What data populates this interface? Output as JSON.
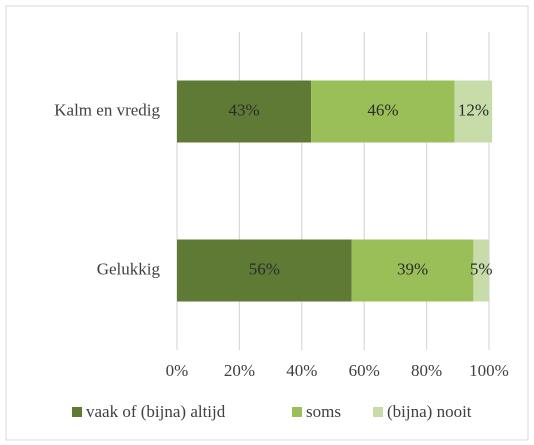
{
  "chart_data": {
    "type": "stacked_bar_horizontal",
    "categories": [
      "Kalm en vredig",
      "Gelukkig"
    ],
    "series": [
      {
        "name": "vaak of (bijna) altijd",
        "color": "#5f7a35",
        "values": [
          43,
          56
        ],
        "value_labels": [
          "43%",
          "56%"
        ]
      },
      {
        "name": "soms",
        "color": "#9bbf58",
        "values": [
          46,
          39
        ],
        "value_labels": [
          "46%",
          "39%"
        ]
      },
      {
        "name": "(bijna) nooit",
        "color": "#c8dcaa",
        "values": [
          12,
          5
        ],
        "value_labels": [
          "12%",
          "5%"
        ]
      }
    ],
    "xlim": [
      0,
      100
    ],
    "xticks": [
      {
        "value": 0,
        "label": "0%"
      },
      {
        "value": 20,
        "label": "20%"
      },
      {
        "value": 40,
        "label": "40%"
      },
      {
        "value": 60,
        "label": "60%"
      },
      {
        "value": 80,
        "label": "80%"
      },
      {
        "value": 100,
        "label": "100%"
      }
    ],
    "grid": true,
    "legend": "bottom"
  }
}
